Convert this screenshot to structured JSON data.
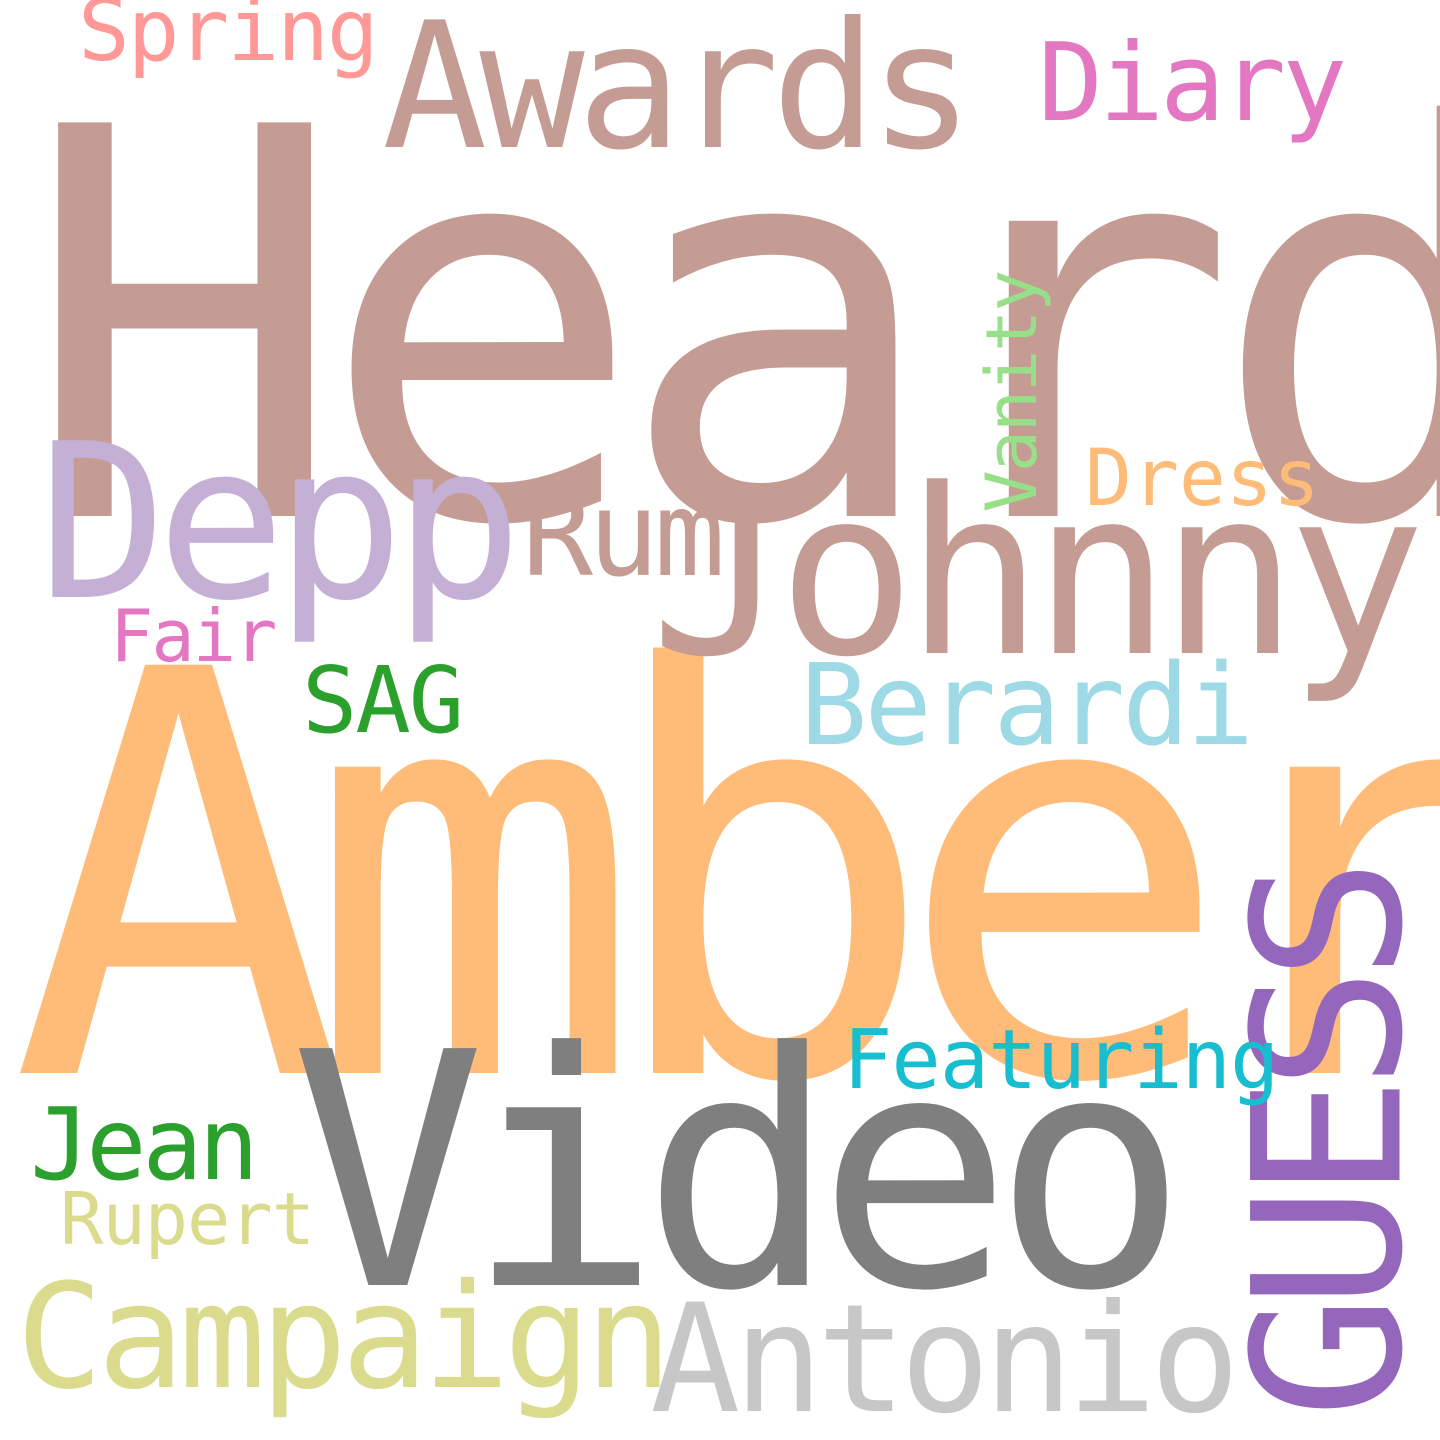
{
  "words": [
    {
      "text": "Heard",
      "color": "#c49c94",
      "orientation": "horizontal"
    },
    {
      "text": "Amber",
      "color": "#ffbb78",
      "orientation": "horizontal"
    },
    {
      "text": "Video",
      "color": "#7f7f7f",
      "orientation": "horizontal"
    },
    {
      "text": "Johnny",
      "color": "#c49c94",
      "orientation": "horizontal"
    },
    {
      "text": "Depp",
      "color": "#c5b0d5",
      "orientation": "horizontal"
    },
    {
      "text": "Awards",
      "color": "#c49c94",
      "orientation": "horizontal"
    },
    {
      "text": "GUESS",
      "color": "#9467bd",
      "orientation": "vertical"
    },
    {
      "text": "Campaign",
      "color": "#dbdb8d",
      "orientation": "horizontal"
    },
    {
      "text": "Antonio",
      "color": "#c7c7c7",
      "orientation": "horizontal"
    },
    {
      "text": "Berardi",
      "color": "#9edae5",
      "orientation": "horizontal"
    },
    {
      "text": "Jean",
      "color": "#2ca02c",
      "orientation": "horizontal"
    },
    {
      "text": "Rum",
      "color": "#c49c94",
      "orientation": "horizontal"
    },
    {
      "text": "Diary",
      "color": "#e377c2",
      "orientation": "horizontal"
    },
    {
      "text": "Featuring",
      "color": "#17becf",
      "orientation": "horizontal"
    },
    {
      "text": "SAG",
      "color": "#2ca02c",
      "orientation": "horizontal"
    },
    {
      "text": "Dress",
      "color": "#ffbb78",
      "orientation": "horizontal"
    },
    {
      "text": "Spring",
      "color": "#ff9896",
      "orientation": "horizontal"
    },
    {
      "text": "Vanity",
      "color": "#98df8a",
      "orientation": "vertical"
    },
    {
      "text": "Rupert",
      "color": "#dbdb8d",
      "orientation": "horizontal"
    },
    {
      "text": "Fair",
      "color": "#e377c2",
      "orientation": "horizontal"
    }
  ]
}
